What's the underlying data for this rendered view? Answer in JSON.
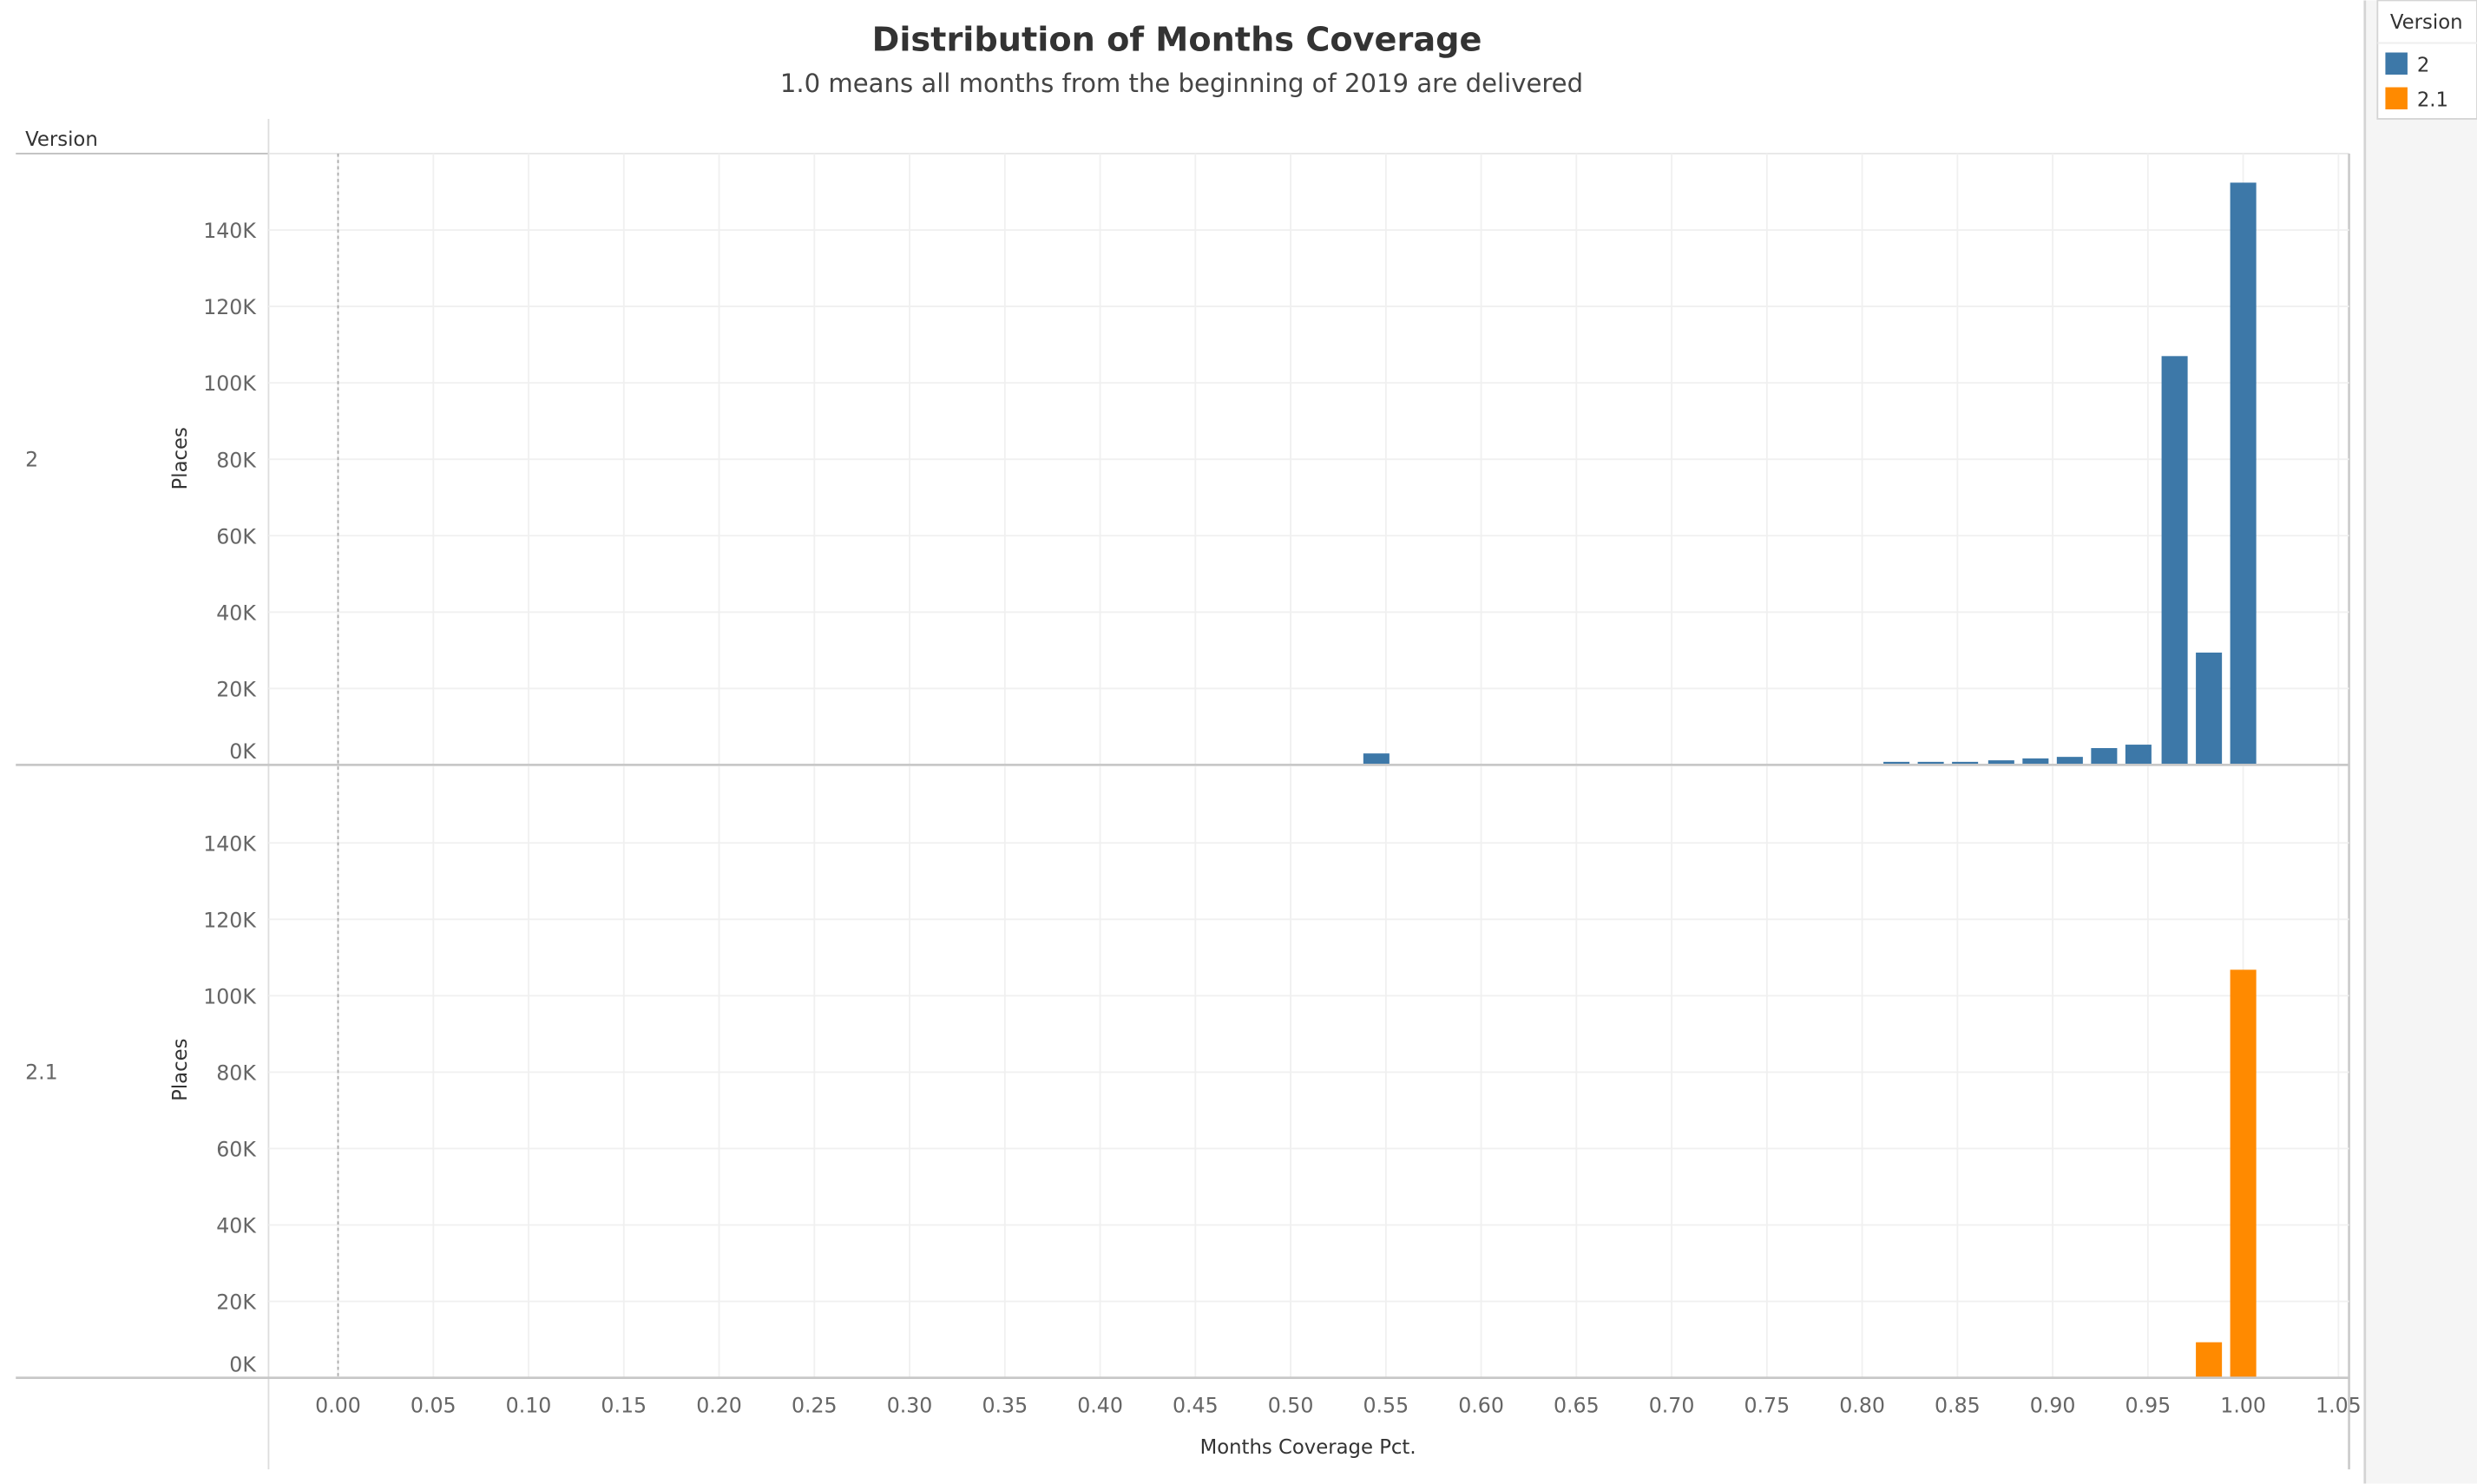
{
  "chart_data": {
    "type": "bar",
    "title": "Distribution of Months Coverage",
    "subtitle": "1.0 means all months from the beginning of 2019 are delivered",
    "xlabel": "Months Coverage Pct.",
    "ylabel": "Places",
    "row_header": "Version",
    "xlim": [
      -0.036,
      1.055
    ],
    "ylim": [
      0,
      160000
    ],
    "x_ticks": [
      "0.00",
      "0.05",
      "0.10",
      "0.15",
      "0.20",
      "0.25",
      "0.30",
      "0.35",
      "0.40",
      "0.45",
      "0.50",
      "0.55",
      "0.60",
      "0.65",
      "0.70",
      "0.75",
      "0.80",
      "0.85",
      "0.90",
      "0.95",
      "1.00",
      "1.05"
    ],
    "y_ticks": [
      "0K",
      "20K",
      "40K",
      "60K",
      "80K",
      "100K",
      "120K",
      "140K"
    ],
    "grid": true,
    "legend": {
      "title": "Version",
      "placement": "top-right",
      "entries": [
        {
          "label": "2",
          "color": "#3d78a8"
        },
        {
          "label": "2.1",
          "color": "#ff8a00"
        }
      ]
    },
    "panels": [
      {
        "name": "2",
        "color": "#3d78a8",
        "x": [
          0.545,
          0.563,
          0.581,
          0.618,
          0.691,
          0.709,
          0.727,
          0.745,
          0.764,
          0.782,
          0.8,
          0.818,
          0.836,
          0.854,
          0.873,
          0.891,
          0.909,
          0.927,
          0.945,
          0.964,
          0.982,
          1.0
        ],
        "values": [
          3000,
          300,
          300,
          300,
          300,
          300,
          300,
          300,
          300,
          300,
          300,
          800,
          800,
          800,
          1200,
          1700,
          2100,
          4400,
          5300,
          107000,
          29400,
          152400
        ]
      },
      {
        "name": "2.1",
        "color": "#ff8a00",
        "x": [
          0.982,
          1.0
        ],
        "values": [
          9300,
          106800
        ]
      }
    ]
  }
}
